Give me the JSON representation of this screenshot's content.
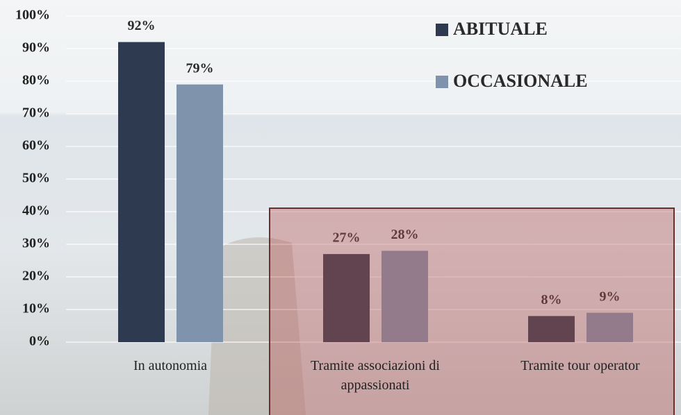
{
  "chart_data": {
    "type": "bar",
    "categories": [
      "In autonomia",
      "Tramite associazioni di appassionati",
      "Tramite tour operator"
    ],
    "series": [
      {
        "name": "ABITUALE",
        "color": "#2e3a4f",
        "values": [
          92,
          27,
          8
        ],
        "value_labels": [
          "92%",
          "27%",
          "8%"
        ]
      },
      {
        "name": "OCCASIONALE",
        "color": "#7f93ad",
        "values": [
          79,
          28,
          9
        ],
        "value_labels": [
          "79%",
          "28%",
          "9%"
        ]
      }
    ],
    "ylim": [
      0,
      100
    ],
    "yticks": [
      {
        "value": 0,
        "label": "0%"
      },
      {
        "value": 10,
        "label": "10%"
      },
      {
        "value": 20,
        "label": "20%"
      },
      {
        "value": 30,
        "label": "30%"
      },
      {
        "value": 40,
        "label": "40%"
      },
      {
        "value": 50,
        "label": "50%"
      },
      {
        "value": 60,
        "label": "60%"
      },
      {
        "value": 70,
        "label": "70%"
      },
      {
        "value": 80,
        "label": "80%"
      },
      {
        "value": 90,
        "label": "90%"
      },
      {
        "value": 100,
        "label": "100%"
      }
    ],
    "grid": true,
    "legend": "top-right"
  }
}
